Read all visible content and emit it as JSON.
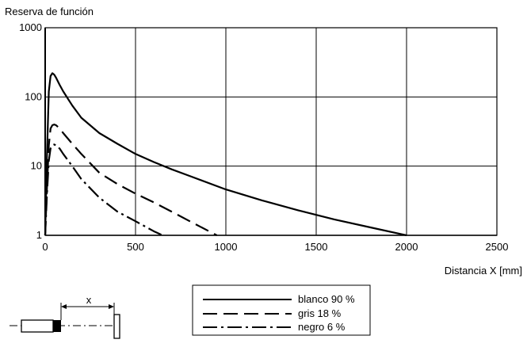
{
  "chart_data": {
    "type": "line",
    "ylabel": "Reserva de función",
    "xlabel": "Distancia X [mm]",
    "xlim": [
      0,
      2500
    ],
    "ylim": [
      1,
      1000
    ],
    "yscale": "log",
    "grid": true,
    "x_ticks": [
      0,
      500,
      1000,
      1500,
      2000,
      2500
    ],
    "y_ticks": [
      1,
      10,
      100,
      1000
    ],
    "x_tick_labels": [
      "0",
      "500",
      "1000",
      "1500",
      "2000",
      "2500"
    ],
    "y_tick_labels": [
      "1",
      "10",
      "100",
      "1000"
    ],
    "legend_position": "bottom-center",
    "series": [
      {
        "name": "blanco 90 %",
        "style": "solid",
        "x": [
          0,
          10,
          20,
          30,
          40,
          50,
          60,
          80,
          100,
          150,
          200,
          300,
          400,
          500,
          600,
          700,
          800,
          1000,
          1200,
          1400,
          1600,
          1800,
          2000
        ],
        "y": [
          1,
          15,
          120,
          200,
          220,
          210,
          190,
          150,
          120,
          75,
          50,
          30,
          21,
          15,
          11.5,
          9,
          7.2,
          4.6,
          3.2,
          2.3,
          1.7,
          1.3,
          1.0
        ]
      },
      {
        "name": "gris 18 %",
        "style": "dashed",
        "x": [
          0,
          10,
          20,
          30,
          40,
          50,
          60,
          80,
          100,
          150,
          200,
          300,
          400,
          500,
          600,
          700,
          800,
          950
        ],
        "y": [
          1,
          5,
          20,
          35,
          39,
          40,
          39,
          35,
          30,
          21,
          15,
          8,
          5.5,
          4,
          3,
          2.2,
          1.6,
          1.0
        ]
      },
      {
        "name": "negro 6 %",
        "style": "dashdot",
        "x": [
          0,
          10,
          20,
          30,
          40,
          50,
          60,
          80,
          100,
          150,
          200,
          300,
          400,
          500,
          600,
          650
        ],
        "y": [
          1,
          4,
          12,
          18,
          20,
          20.5,
          20,
          18,
          15,
          10,
          6.5,
          3.5,
          2.2,
          1.6,
          1.15,
          1.0
        ]
      }
    ]
  },
  "diagram": {
    "distance_label": "x"
  }
}
